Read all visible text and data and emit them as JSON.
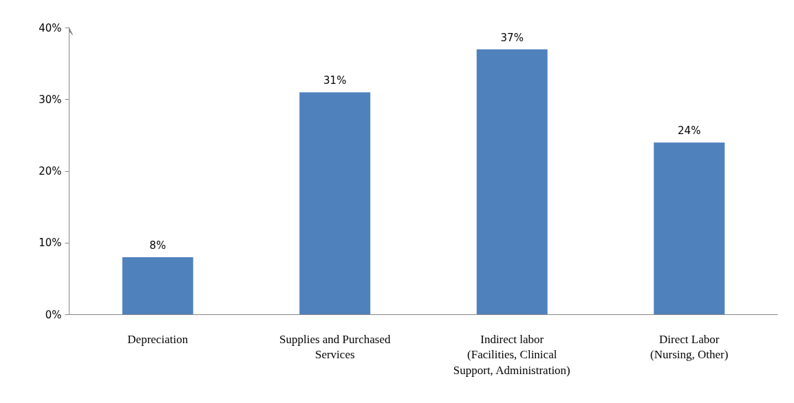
{
  "chart_data": {
    "type": "bar",
    "categories": [
      "Depreciation",
      "Supplies and Purchased\nServices",
      "Indirect labor\n(Facilities, Clinical\nSupport, Administration)",
      "Direct Labor\n(Nursing, Other)"
    ],
    "values": [
      8,
      31,
      37,
      24
    ],
    "value_labels": [
      "8%",
      "31%",
      "37%",
      "24%"
    ],
    "color": "#4f81bd",
    "ylim": [
      0,
      40
    ],
    "yticks": [
      {
        "value": 0,
        "label": "0%"
      },
      {
        "value": 10,
        "label": "10%"
      },
      {
        "value": 20,
        "label": "20%"
      },
      {
        "value": 30,
        "label": "30%"
      },
      {
        "value": 40,
        "label": "40%"
      }
    ],
    "grid": false
  }
}
